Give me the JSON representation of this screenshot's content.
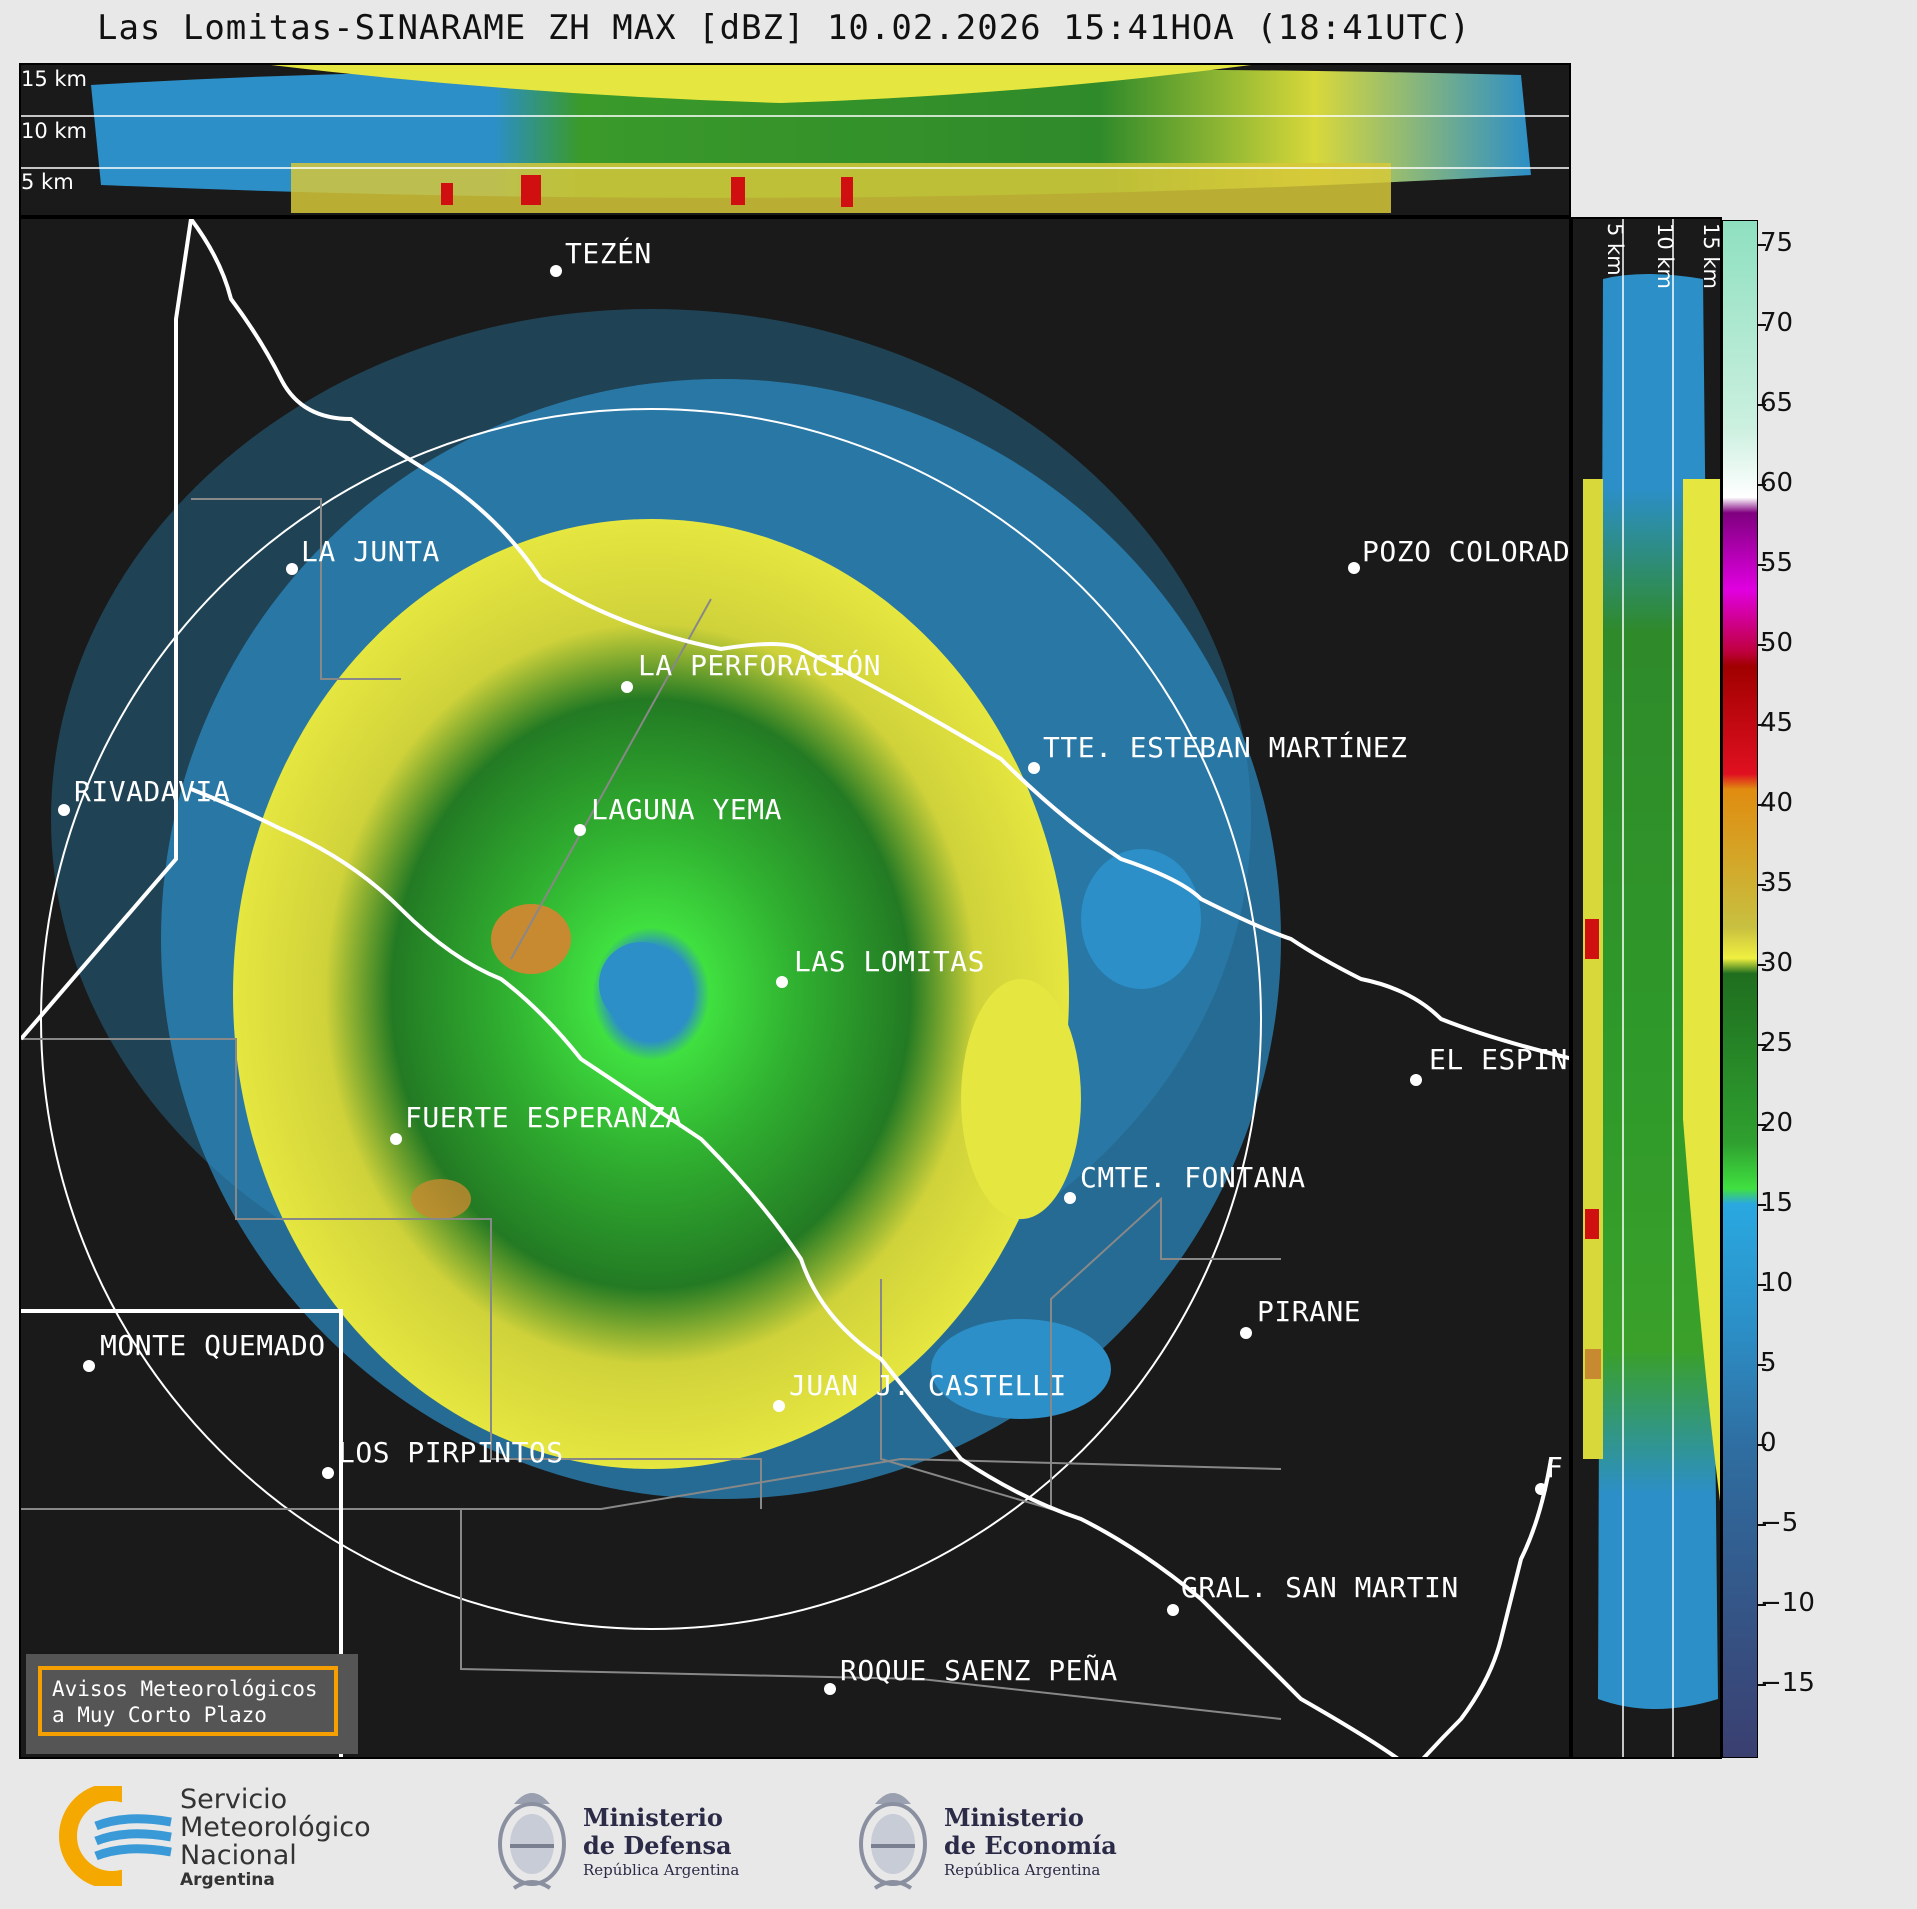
{
  "title": "Las Lomitas-SINARAME ZH MAX [dBZ] 10.02.2026 15:41HOA (18:41UTC)",
  "top_panel": {
    "alt_labels": [
      "15 km",
      "10 km",
      "5 km"
    ]
  },
  "side_panel": {
    "alt_labels": [
      "5 km",
      "10 km",
      "15 km"
    ]
  },
  "places": [
    {
      "name": "TEZÉN"
    },
    {
      "name": "LA JUNTA"
    },
    {
      "name": "POZO COLORAD"
    },
    {
      "name": "LA PERFORACIÓN"
    },
    {
      "name": "TTE. ESTEBAN MARTÍNEZ"
    },
    {
      "name": "RIVADAVIA"
    },
    {
      "name": "LAGUNA YEMA"
    },
    {
      "name": "LAS LOMITAS"
    },
    {
      "name": "EL ESPIN"
    },
    {
      "name": "FUERTE ESPERANZA"
    },
    {
      "name": "CMTE. FONTANA"
    },
    {
      "name": "PIRANE"
    },
    {
      "name": "MONTE QUEMADO"
    },
    {
      "name": "JUAN J. CASTELLI"
    },
    {
      "name": "LOS PIRPINTOS"
    },
    {
      "name": "GRAL. SAN MARTIN"
    },
    {
      "name": "ROQUE SAENZ PEÑA"
    },
    {
      "name": "F"
    }
  ],
  "warning": {
    "line1": "Avisos Meteorológicos",
    "line2": "a Muy Corto Plazo"
  },
  "colorbar": {
    "ticks": [
      "75",
      "70",
      "65",
      "60",
      "55",
      "50",
      "45",
      "40",
      "35",
      "30",
      "25",
      "20",
      "15",
      "10",
      "5",
      "0",
      "−5",
      "−10",
      "−15"
    ],
    "colors": {
      "blue_low": "#3a3f70",
      "blue": "#2c8fc7",
      "cyan": "#2aa8e0",
      "green_light": "#40e040",
      "green_dark": "#1f6e1f",
      "yellow": "#e6e640",
      "orange": "#e08c10",
      "red": "#d01010",
      "magenta": "#c000c0",
      "white": "#ffffff",
      "mint": "#8ee0c0"
    }
  },
  "footer": {
    "smn": {
      "line1": "Servicio",
      "line2": "Meteorológico",
      "line3": "Nacional",
      "line4": "Argentina"
    },
    "defensa": {
      "line1": "Ministerio",
      "line2": "de Defensa",
      "sub": "República Argentina"
    },
    "economia": {
      "line1": "Ministerio",
      "line2": "de Economía",
      "sub": "República Argentina"
    }
  }
}
